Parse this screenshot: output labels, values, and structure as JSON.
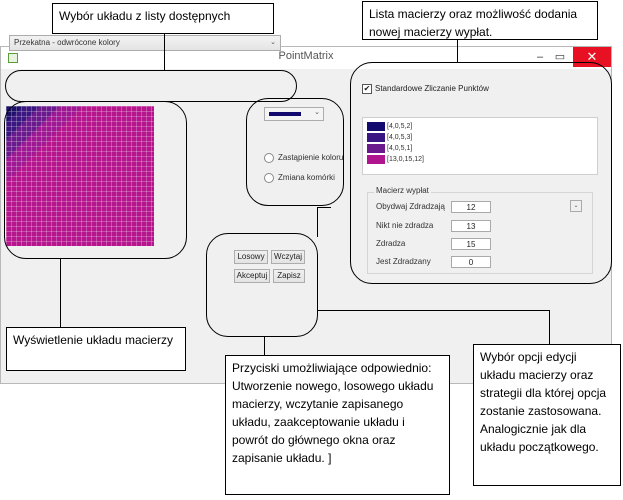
{
  "window": {
    "title": "PointMatrix"
  },
  "layout_combo": {
    "value": "Przekatna - odwrócone kolory",
    "arrow": "⌄"
  },
  "color_combo": {
    "arrow": "⌄",
    "selected_color": "#11096e"
  },
  "radios": [
    {
      "label": "Zastąpienie koloru"
    },
    {
      "label": "Zmiana komórki"
    }
  ],
  "buttons": {
    "random": "Losowy",
    "load": "Wczytaj",
    "accept": "Akceptuj",
    "save": "Zapisz"
  },
  "checkbox": {
    "label": "Standardowe Zliczanie Punktów",
    "checked": true
  },
  "matrices": [
    {
      "label": "[4,0,5,2]",
      "color": "#120a6e"
    },
    {
      "label": "[4,0,5,3]",
      "color": "#3a1684"
    },
    {
      "label": "[4,0,5,1]",
      "color": "#6a1a8c"
    },
    {
      "label": "[13,0,15,12]",
      "color": "#b01590"
    }
  ],
  "payout": {
    "group_label": "Macierz wypłat",
    "rows": [
      {
        "label": "Obydwaj Zdradzają",
        "value": "12"
      },
      {
        "label": "Nikt nie zdradza",
        "value": "13"
      },
      {
        "label": "Zdradza",
        "value": "15"
      },
      {
        "label": "Jest Zdradzany",
        "value": "0"
      }
    ]
  },
  "annotations": {
    "layout_select": "Wybór układu z listy dostępnych",
    "matrix_list": "Lista macierzy oraz możliwość dodania nowej macierzy wypłat.",
    "layout_display": "Wyświetlenie układu macierzy",
    "buttons_desc": "Przyciski umożliwiające odpowiednio: Utworzenie nowego, losowego układu macierzy, wczytanie zapisanego układu, zaakceptowanie układu i powrót do głównego okna oraz zapisanie układu. ]",
    "edit_desc": "Wybór opcji edycji układu macierzy oraz strategii dla której opcja zostanie zastosowana. Analogicznie jak dla układu początkowego."
  }
}
